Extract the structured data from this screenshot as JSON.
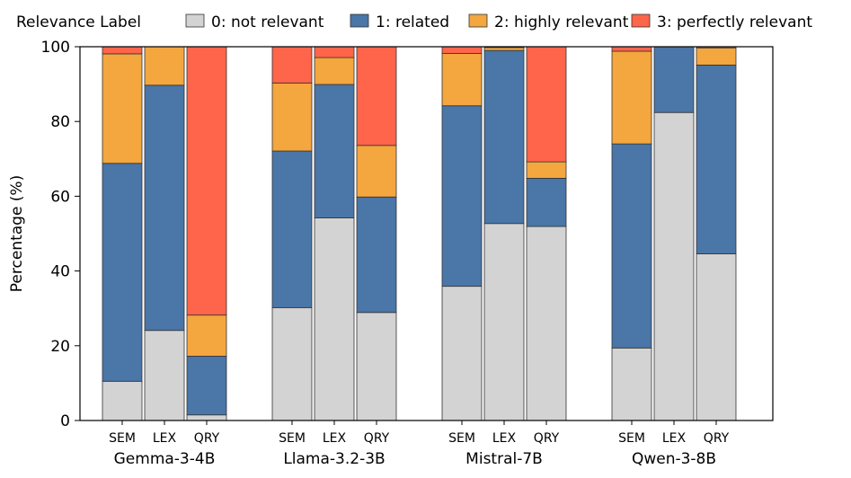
{
  "chart_data": {
    "type": "bar",
    "stacked": true,
    "title": "",
    "xlabel": "",
    "ylabel": "Percentage (%)",
    "ylim": [
      0,
      100
    ],
    "yticks": [
      0,
      20,
      40,
      60,
      80,
      100
    ],
    "grid": false,
    "legend": {
      "title": "Relevance Label",
      "placement": "top",
      "entries": [
        "0: not relevant",
        "1: related",
        "2: highly relevant",
        "3: perfectly relevant"
      ]
    },
    "colors": [
      "#d3d3d3",
      "#4a76a8",
      "#f4a63f",
      "#fe654a"
    ],
    "groups": [
      {
        "name": "Gemma-3-4B",
        "bars": [
          {
            "label": "SEM",
            "values": [
              10.5,
              58.3,
              29.3,
              1.9
            ]
          },
          {
            "label": "LEX",
            "values": [
              24.1,
              65.6,
              10.3,
              0.0
            ]
          },
          {
            "label": "QRY",
            "values": [
              1.5,
              15.7,
              11.0,
              71.8
            ]
          }
        ]
      },
      {
        "name": "Llama-3.2-3B",
        "bars": [
          {
            "label": "SEM",
            "values": [
              30.2,
              41.9,
              18.2,
              9.7
            ]
          },
          {
            "label": "LEX",
            "values": [
              54.2,
              35.7,
              7.2,
              2.9
            ]
          },
          {
            "label": "QRY",
            "values": [
              28.9,
              30.9,
              13.8,
              26.4
            ]
          }
        ]
      },
      {
        "name": "Mistral-7B",
        "bars": [
          {
            "label": "SEM",
            "values": [
              35.9,
              48.3,
              14.0,
              1.8
            ]
          },
          {
            "label": "LEX",
            "values": [
              52.7,
              46.3,
              0.8,
              0.2
            ]
          },
          {
            "label": "QRY",
            "values": [
              51.9,
              12.9,
              4.4,
              30.8
            ]
          }
        ]
      },
      {
        "name": "Qwen-3-8B",
        "bars": [
          {
            "label": "SEM",
            "values": [
              19.4,
              54.6,
              24.8,
              1.2
            ]
          },
          {
            "label": "LEX",
            "values": [
              82.4,
              17.6,
              0.0,
              0.0
            ]
          },
          {
            "label": "QRY",
            "values": [
              44.6,
              50.5,
              4.6,
              0.3
            ]
          }
        ]
      }
    ]
  }
}
